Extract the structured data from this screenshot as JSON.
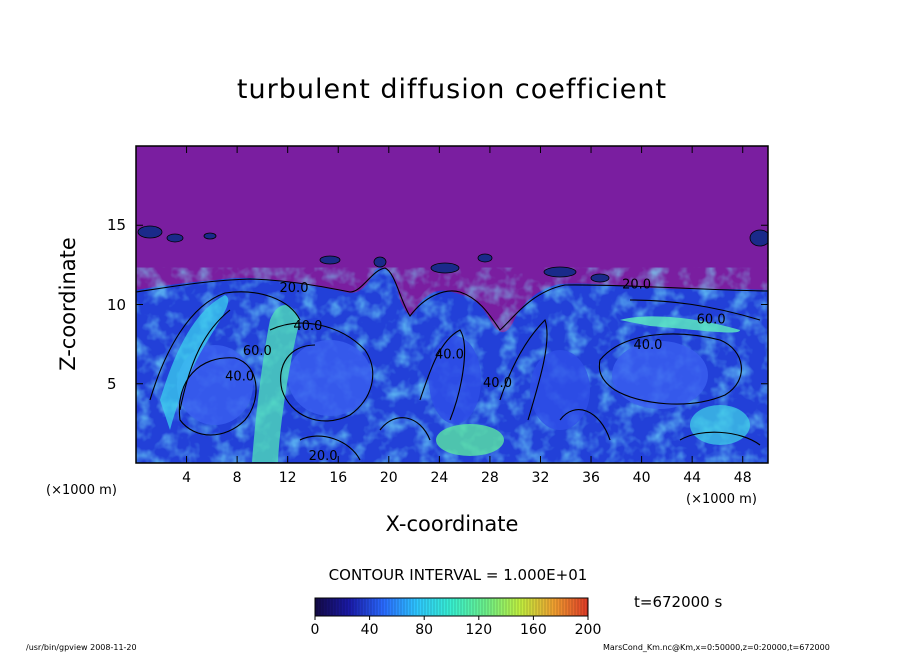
{
  "chart_data": {
    "type": "heatmap",
    "title": "turbulent diffusion coefficient",
    "xlabel": "X-coordinate",
    "ylabel": "Z-coordinate",
    "x_unit_left": "(×1000 m)",
    "x_unit_right": "(×1000 m)",
    "xlim": [
      0,
      50
    ],
    "ylim": [
      0,
      20
    ],
    "x_ticks": [
      "4",
      "8",
      "12",
      "16",
      "20",
      "24",
      "28",
      "32",
      "36",
      "40",
      "44",
      "48"
    ],
    "x_tick_values": [
      4,
      8,
      12,
      16,
      20,
      24,
      28,
      32,
      36,
      40,
      44,
      48
    ],
    "y_ticks": [
      "5",
      "10",
      "15"
    ],
    "y_tick_values": [
      5,
      10,
      15
    ],
    "contour_interval_label": "CONTOUR INTERVAL = 1.000E+01",
    "contour_labels": [
      {
        "text": "20.0",
        "x": 12.5,
        "z": 10.8
      },
      {
        "text": "40.0",
        "x": 13.6,
        "z": 8.4
      },
      {
        "text": "40.0",
        "x": 8.2,
        "z": 5.2
      },
      {
        "text": "60.0",
        "x": 9.6,
        "z": 6.8
      },
      {
        "text": "20.0",
        "x": 14.8,
        "z": 0.2
      },
      {
        "text": "20.0",
        "x": 39.6,
        "z": 11.0
      },
      {
        "text": "60.0",
        "x": 45.5,
        "z": 8.8
      },
      {
        "text": "40.0",
        "x": 40.5,
        "z": 7.2
      },
      {
        "text": "40.0",
        "x": 24.8,
        "z": 6.6
      },
      {
        "text": "40.0",
        "x": 28.6,
        "z": 4.8
      }
    ],
    "colorbar": {
      "ticks": [
        "0",
        "40",
        "80",
        "120",
        "160",
        "200"
      ],
      "tick_values": [
        0,
        40,
        80,
        120,
        160,
        200
      ],
      "range": [
        0,
        200
      ],
      "colors": [
        "#140a46",
        "#1a1aa8",
        "#2a6aff",
        "#2ec8ff",
        "#38f0d0",
        "#6cf08a",
        "#c0f040",
        "#f0a030",
        "#e03a28"
      ]
    },
    "background_color": "#7a1ea0",
    "time_label": "t=672000 s",
    "grid": false
  },
  "footer": {
    "left": "/usr/bin/gpview   2008-11-20",
    "right": "MarsCond_Km.nc@Km,x=0:50000,z=0:20000,t=672000"
  }
}
